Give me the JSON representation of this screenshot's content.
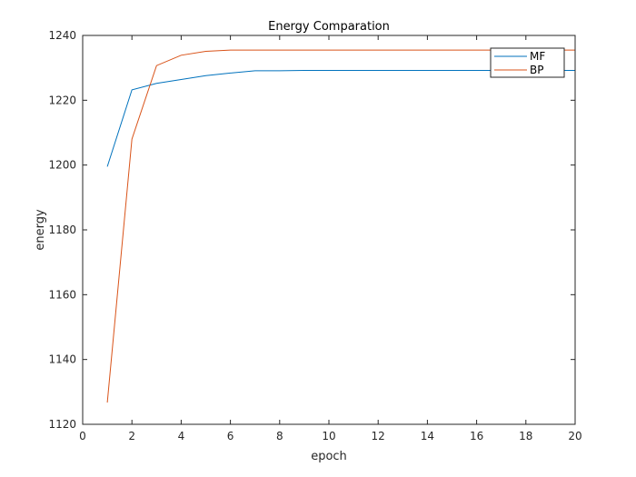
{
  "chart_data": {
    "type": "line",
    "title": "Energy Comparation",
    "xlabel": "epoch",
    "ylabel": "energy",
    "xlim": [
      0,
      20
    ],
    "ylim": [
      1120,
      1240
    ],
    "xticks": [
      0,
      2,
      4,
      6,
      8,
      10,
      12,
      14,
      16,
      18,
      20
    ],
    "yticks": [
      1120,
      1140,
      1160,
      1180,
      1200,
      1220,
      1240
    ],
    "grid": false,
    "legend_position": "top-right",
    "series": [
      {
        "name": "MF",
        "color": "#0072BD",
        "x": [
          1,
          2,
          3,
          4,
          5,
          6,
          7,
          8,
          9,
          10,
          11,
          12,
          13,
          14,
          15,
          16,
          17,
          18,
          19,
          20
        ],
        "y": [
          1199.5,
          1223.2,
          1225.2,
          1226.4,
          1227.6,
          1228.4,
          1229.1,
          1229.1,
          1229.2,
          1229.2,
          1229.2,
          1229.2,
          1229.2,
          1229.2,
          1229.2,
          1229.2,
          1229.2,
          1229.2,
          1229.2,
          1229.2
        ]
      },
      {
        "name": "BP",
        "color": "#D95319",
        "x": [
          1,
          2,
          3,
          4,
          5,
          6,
          7,
          8,
          9,
          10,
          11,
          12,
          13,
          14,
          15,
          16,
          17,
          18,
          19,
          20
        ],
        "y": [
          1126.7,
          1208.0,
          1230.7,
          1233.9,
          1235.1,
          1235.5,
          1235.5,
          1235.5,
          1235.5,
          1235.5,
          1235.5,
          1235.5,
          1235.5,
          1235.5,
          1235.5,
          1235.5,
          1235.5,
          1235.5,
          1235.5,
          1235.5
        ]
      }
    ]
  }
}
